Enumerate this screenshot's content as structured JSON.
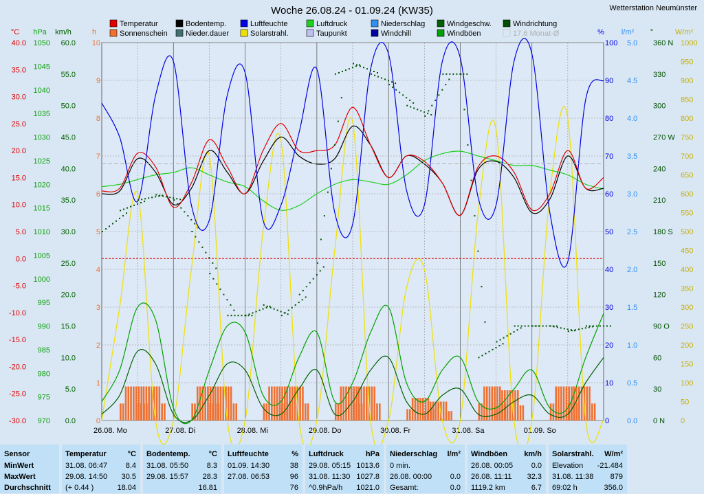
{
  "station": "Wetterstation Neumünster",
  "chart_data": {
    "type": "line",
    "title": "Woche 26.08.24 - 01.09.24 (KW35)",
    "x_labels": [
      "26.08. Mo",
      "27.08. Di",
      "28.08. Mi",
      "29.08. Do",
      "30.08. Fr",
      "31.08. Sa",
      "01.09. So"
    ],
    "hours": [
      0,
      6,
      12,
      18,
      24,
      30,
      36,
      42,
      48,
      54,
      60,
      66,
      72,
      78,
      84,
      90,
      96,
      102,
      108,
      114,
      120,
      126,
      132,
      138,
      144,
      150,
      156,
      162,
      168
    ],
    "axes": {
      "temp_c": {
        "label": "°C",
        "min": -30,
        "max": 40,
        "ticks": [
          "40.0",
          "35.0",
          "30.0",
          "25.0",
          "20.0",
          "15.0",
          "10.0",
          "5.0",
          "0.0",
          "-5.0",
          "-10.0",
          "-15.0",
          "-20.0",
          "-25.0",
          "-30.0"
        ]
      },
      "pressure_hpa": {
        "label": "hPa",
        "min": 970,
        "max": 1050,
        "ticks": [
          "1050",
          "1045",
          "1040",
          "1035",
          "1030",
          "1025",
          "1020",
          "1015",
          "1010",
          "1005",
          "1000",
          "995",
          "990",
          "985",
          "980",
          "975",
          "970"
        ]
      },
      "wind_kmh": {
        "label": "km/h",
        "min": 0,
        "max": 60,
        "ticks": [
          "60.0",
          "55.0",
          "50.0",
          "45.0",
          "40.0",
          "35.0",
          "30.0",
          "25.0",
          "20.0",
          "15.0",
          "10.0",
          "5.0",
          "0.0"
        ]
      },
      "sun_h": {
        "label": "h",
        "min": 0,
        "max": 10,
        "ticks": [
          "10",
          "9",
          "8",
          "7",
          "6",
          "5",
          "4",
          "3",
          "2",
          "1",
          "0"
        ]
      },
      "humidity_pct": {
        "label": "%",
        "min": 0,
        "max": 100,
        "ticks": [
          "100",
          "90",
          "80",
          "70",
          "60",
          "50",
          "40",
          "30",
          "20",
          "10",
          "0"
        ]
      },
      "rain_lm2": {
        "label": "l/m²",
        "min": 0,
        "max": 5,
        "ticks": [
          "5.0",
          "4.5",
          "4.0",
          "3.5",
          "3.0",
          "2.5",
          "2.0",
          "1.5",
          "1.0",
          "0.5",
          "0.0"
        ]
      },
      "dir_deg": {
        "label": "°",
        "min": 0,
        "max": 360,
        "ticks": [
          "360 N",
          "330",
          "300",
          "270 W",
          "240",
          "210",
          "180 S",
          "150",
          "120",
          "90 O",
          "60",
          "30",
          "0 N"
        ]
      },
      "solar_wm2": {
        "label": "W/m²",
        "min": 0,
        "max": 1000,
        "ticks": [
          "1000",
          "950",
          "900",
          "850",
          "800",
          "750",
          "700",
          "650",
          "600",
          "550",
          "500",
          "450",
          "400",
          "350",
          "300",
          "250",
          "200",
          "150",
          "100",
          "50",
          "0"
        ]
      }
    },
    "legend": [
      {
        "name": "Temperatur",
        "color": "#e00000"
      },
      {
        "name": "Sonnenschein",
        "color": "#f07030"
      },
      {
        "name": "Bodentemp.",
        "color": "#000000"
      },
      {
        "name": "Nieder.dauer",
        "color": "#407070"
      },
      {
        "name": "Luftfeuchte",
        "color": "#0000e0"
      },
      {
        "name": "Solarstrahl.",
        "color": "#f0e000"
      },
      {
        "name": "Luftdruck",
        "color": "#20d020"
      },
      {
        "name": "Taupunkt",
        "color": "#c0c0f0"
      },
      {
        "name": "Niederschlag",
        "color": "#3090f0"
      },
      {
        "name": "Windchill",
        "color": "#0000a0"
      },
      {
        "name": "Windgeschw.",
        "color": "#006000"
      },
      {
        "name": "Windböen",
        "color": "#00a000"
      },
      {
        "name": "Windrichtung",
        "color": "#005000"
      },
      {
        "name": "17.6 Monat-Ø",
        "color": "#c0c0c0"
      }
    ],
    "series": [
      {
        "name": "Temperatur",
        "unit": "°C",
        "values": [
          12.5,
          13,
          19.5,
          17,
          9.5,
          14,
          22,
          17,
          12,
          20,
          25,
          20,
          20,
          21,
          28,
          21,
          15,
          19,
          18,
          14,
          8,
          17,
          19,
          16,
          9,
          12,
          20,
          13,
          15
        ]
      },
      {
        "name": "Bodentemp.",
        "unit": "°C",
        "values": [
          12,
          12.5,
          18.5,
          16,
          10,
          13,
          20,
          16,
          12,
          18,
          22.5,
          19,
          17.5,
          18.5,
          24.5,
          21,
          15,
          19,
          17.5,
          14,
          8,
          16.5,
          18,
          15,
          8.5,
          11,
          19,
          13,
          13
        ]
      },
      {
        "name": "Luftfeuchte",
        "unit": "%",
        "values": [
          84,
          75,
          58,
          86,
          95,
          57,
          53,
          86,
          92,
          53,
          57,
          76,
          93,
          55,
          52,
          93,
          97,
          61,
          57,
          95,
          96,
          59,
          57,
          95,
          97,
          55,
          42,
          85,
          90
        ]
      },
      {
        "name": "Luftdruck",
        "unit": "hPa",
        "values": [
          1019.5,
          1020,
          1021,
          1022,
          1022.5,
          1023.5,
          1022,
          1020.5,
          1019.5,
          1016.5,
          1014.5,
          1015.5,
          1018,
          1020,
          1021,
          1020.5,
          1020,
          1022,
          1025,
          1026.5,
          1027,
          1026,
          1025,
          1024,
          1024,
          1023,
          1022,
          1020,
          1019
        ]
      },
      {
        "name": "Sonnenschein",
        "unit": "h",
        "values": [
          0,
          0.9,
          0.9,
          0,
          0,
          0.9,
          0.9,
          0,
          0,
          0.9,
          0.9,
          0,
          0,
          0.9,
          0.9,
          0,
          0,
          0.6,
          0.5,
          0,
          0,
          0.9,
          0.8,
          0,
          0,
          0.9,
          0.9,
          0,
          0
        ]
      },
      {
        "name": "Solarstrahl.",
        "unit": "W/m²",
        "values": [
          0,
          300,
          600,
          0,
          0,
          400,
          700,
          0,
          0,
          500,
          740,
          0,
          0,
          450,
          790,
          0,
          0,
          350,
          400,
          0,
          0,
          550,
          770,
          0,
          0,
          600,
          800,
          0,
          0
        ]
      },
      {
        "name": "Windböen",
        "unit": "km/h",
        "values": [
          3,
          8,
          18,
          16,
          2,
          0,
          8,
          15,
          14,
          4,
          3,
          10,
          14,
          3,
          6,
          14,
          18,
          6,
          3,
          8,
          10,
          3,
          2,
          5,
          8,
          2,
          2,
          10,
          17
        ]
      },
      {
        "name": "Windgeschw.",
        "unit": "km/h",
        "values": [
          1,
          4,
          11,
          9,
          1,
          0,
          4,
          9,
          8,
          2,
          1,
          5,
          8,
          1,
          3,
          8,
          10,
          3,
          1,
          4,
          5,
          1,
          1,
          3,
          4,
          1,
          1,
          6,
          10
        ]
      },
      {
        "name": "Windrichtung",
        "unit": "°",
        "values": [
          180,
          200,
          210,
          215,
          210,
          180,
          140,
          100,
          100,
          110,
          100,
          120,
          150,
          330,
          340,
          330,
          320,
          300,
          290,
          330,
          330,
          60,
          75,
          90,
          90,
          90,
          85,
          90,
          90
        ]
      }
    ]
  },
  "table": {
    "row_labels": [
      "Sensor",
      "MinWert",
      "MaxWert",
      "Durchschnitt"
    ],
    "columns": [
      {
        "title": "Temperatur",
        "unit": "°C",
        "rows": [
          [
            "31.08.  06:47",
            "8.4"
          ],
          [
            "29.08.  14:50",
            "30.5"
          ],
          [
            "(+ 0.44 )",
            "18.04"
          ]
        ]
      },
      {
        "title": "Bodentemp.",
        "unit": "°C",
        "rows": [
          [
            "31.08.  05:50",
            "8.3"
          ],
          [
            "29.08.  15:57",
            "28.3"
          ],
          [
            "",
            "16.81"
          ]
        ]
      },
      {
        "title": "Luftfeuchte",
        "unit": "%",
        "rows": [
          [
            "01.09.  14:30",
            "38"
          ],
          [
            "27.08.  06:53",
            "96"
          ],
          [
            "",
            "76"
          ]
        ]
      },
      {
        "title": "Luftdruck",
        "unit": "hPa",
        "rows": [
          [
            "29.08.  05:15",
            "1013.6"
          ],
          [
            "31.08.  11:30",
            "1027.8"
          ],
          [
            "^0.9hPa/h",
            "1021.0"
          ]
        ]
      },
      {
        "title": "Niederschlag",
        "unit": "l/m²",
        "rows": [
          [
            "0 min.",
            ""
          ],
          [
            "26.08.  00:00",
            "0.0"
          ],
          [
            "Gesamt:",
            "0.0"
          ]
        ]
      },
      {
        "title": "Windböen",
        "unit": "km/h",
        "rows": [
          [
            "26.08.  00:05",
            "0.0"
          ],
          [
            "26.08.  11:11",
            "32.3"
          ],
          [
            "1119.2 km",
            "6.7"
          ]
        ]
      },
      {
        "title": "Solarstrahl.",
        "unit": "W/m²",
        "rows": [
          [
            "Elevation",
            "-21.484"
          ],
          [
            "31.08.  11:38",
            "879"
          ],
          [
            "69:02 h",
            "356.0"
          ]
        ]
      }
    ]
  }
}
